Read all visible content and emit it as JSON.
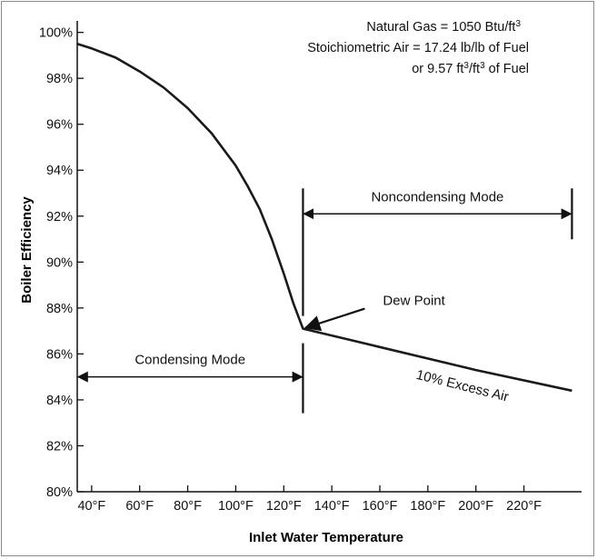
{
  "chart_data": {
    "type": "line",
    "xlabel": "Inlet Water Temperature",
    "ylabel": "Boiler Efficiency",
    "xlim": [
      34,
      244
    ],
    "ylim": [
      80,
      100.5
    ],
    "x_ticks": [
      {
        "value": 40,
        "label": "40°F"
      },
      {
        "value": 60,
        "label": "60°F"
      },
      {
        "value": 80,
        "label": "80°F"
      },
      {
        "value": 100,
        "label": "100°F"
      },
      {
        "value": 120,
        "label": "120°F"
      },
      {
        "value": 140,
        "label": "140°F"
      },
      {
        "value": 160,
        "label": "160°F"
      },
      {
        "value": 180,
        "label": "180°F"
      },
      {
        "value": 200,
        "label": "200°F"
      },
      {
        "value": 220,
        "label": "220°F"
      }
    ],
    "y_ticks": [
      {
        "value": 80,
        "label": "80%"
      },
      {
        "value": 82,
        "label": "82%"
      },
      {
        "value": 84,
        "label": "84%"
      },
      {
        "value": 86,
        "label": "86%"
      },
      {
        "value": 88,
        "label": "88%"
      },
      {
        "value": 90,
        "label": "90%"
      },
      {
        "value": 92,
        "label": "92%"
      },
      {
        "value": 94,
        "label": "94%"
      },
      {
        "value": 96,
        "label": "96%"
      },
      {
        "value": 98,
        "label": "98%"
      },
      {
        "value": 100,
        "label": "100%"
      }
    ],
    "grid": false,
    "series": [
      {
        "name": "10% Excess Air",
        "color": "#1a1a1a",
        "points": [
          [
            34,
            99.5
          ],
          [
            40,
            99.3
          ],
          [
            50,
            98.9
          ],
          [
            60,
            98.3
          ],
          [
            70,
            97.6
          ],
          [
            80,
            96.7
          ],
          [
            90,
            95.6
          ],
          [
            100,
            94.2
          ],
          [
            105,
            93.3
          ],
          [
            110,
            92.3
          ],
          [
            115,
            91.0
          ],
          [
            120,
            89.5
          ],
          [
            124,
            88.2
          ],
          [
            128,
            87.1
          ],
          [
            160,
            86.3
          ],
          [
            200,
            85.3
          ],
          [
            240,
            84.4
          ]
        ]
      }
    ],
    "dew_point": {
      "x": 128,
      "y": 87.1
    },
    "noncondensing_range": {
      "x_start": 128,
      "x_end": 240,
      "y": 92.1
    },
    "condensing_range": {
      "x_start": 34,
      "x_end": 128,
      "y": 85.0
    },
    "labels": {
      "noncondensing": "Noncondensing Mode",
      "condensing": "Condensing Mode",
      "dew_point": "Dew Point",
      "series": "10% Excess Air"
    },
    "notes": {
      "line1_a": "Natural Gas = 1050 Btu/ft",
      "line1_sup": "3",
      "line2": "Stoichiometric Air = 17.24 lb/lb of Fuel",
      "line3_a": "or 9.57 ft",
      "line3_sup1": "3",
      "line3_b": "/ft",
      "line3_sup2": "3",
      "line3_c": " of Fuel"
    }
  }
}
